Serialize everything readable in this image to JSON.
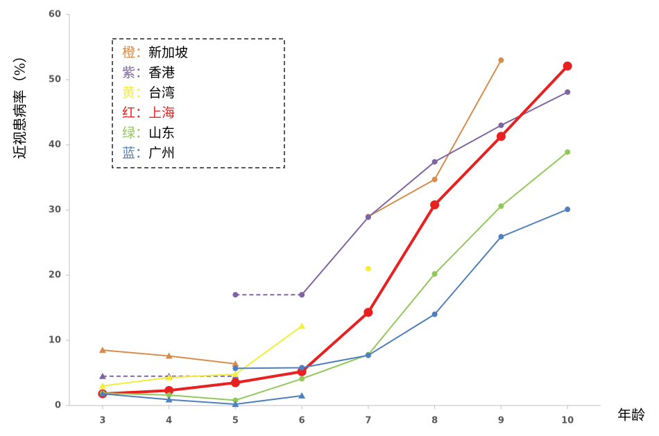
{
  "chart_data": {
    "type": "line",
    "y_label": "近视患病率（%）",
    "x_label": "年龄",
    "xlim": [
      2.5,
      10.5
    ],
    "xticks": [
      3,
      4,
      5,
      6,
      7,
      8,
      9,
      10
    ],
    "ylim": [
      0,
      60
    ],
    "yticks": [
      0,
      10,
      20,
      30,
      40,
      50,
      60
    ],
    "series": [
      {
        "color_word": "橙：",
        "name": "新加坡",
        "color": "#d98b4a",
        "segments": [
          {
            "x": [
              3,
              4,
              5
            ],
            "values": [
              8.5,
              7.6,
              6.4
            ],
            "marker": "triangle",
            "dashed": false
          },
          {
            "x": [
              7,
              8,
              9
            ],
            "values": [
              29,
              34.7,
              53
            ],
            "marker": "circle",
            "dashed": false
          }
        ]
      },
      {
        "color_word": "紫：",
        "name": "香港",
        "color": "#8064a2",
        "segments": [
          {
            "x": [
              3,
              4,
              5
            ],
            "values": [
              4.5,
              4.5,
              4.5
            ],
            "marker": "triangle",
            "dashed": true
          },
          {
            "x": [
              5,
              6
            ],
            "values": [
              17,
              17
            ],
            "marker": "circle",
            "dashed": true
          },
          {
            "x": [
              6,
              7,
              8,
              9,
              10
            ],
            "values": [
              17,
              28.9,
              37.4,
              43,
              48.1
            ],
            "marker": "circle",
            "dashed": false
          }
        ]
      },
      {
        "color_word": "黄：",
        "name": "台湾",
        "color": "#f2ee3a",
        "segments": [
          {
            "x": [
              3,
              4,
              5,
              6
            ],
            "values": [
              3,
              4.3,
              4.8,
              12.2
            ],
            "marker": "triangle",
            "dashed": false
          },
          {
            "x": [
              7
            ],
            "values": [
              21
            ],
            "marker": "circle",
            "dashed": false
          }
        ]
      },
      {
        "color_word": "红：",
        "name": "上海",
        "color": "#e8201f",
        "name_color": "#e8201f",
        "width": 4,
        "segments": [
          {
            "x": [
              3,
              4,
              5,
              6,
              7,
              8,
              9,
              10
            ],
            "values": [
              1.8,
              2.3,
              3.5,
              5.2,
              14.3,
              30.8,
              41.3,
              52.1
            ],
            "marker": "circle",
            "dashed": false
          }
        ]
      },
      {
        "color_word": "绿：",
        "name": "山东",
        "color": "#92c85a",
        "segments": [
          {
            "x": [
              3,
              4,
              5,
              6,
              7,
              8,
              9,
              10
            ],
            "values": [
              1.9,
              1.6,
              0.8,
              4.1,
              7.8,
              20.2,
              30.6,
              38.9
            ],
            "marker": "circle",
            "dashed": false
          }
        ]
      },
      {
        "color_word": "蓝：",
        "name": "广州",
        "color": "#4f7fbd",
        "segments": [
          {
            "x": [
              3,
              4,
              5,
              6
            ],
            "values": [
              1.8,
              0.9,
              0.2,
              1.5
            ],
            "marker": "triangle",
            "dashed": false
          },
          {
            "x": [
              5,
              6,
              7,
              8,
              9,
              10
            ],
            "values": [
              5.7,
              5.8,
              7.7,
              14,
              25.9,
              30.1
            ],
            "marker": "circle",
            "dashed": false
          }
        ]
      }
    ]
  }
}
